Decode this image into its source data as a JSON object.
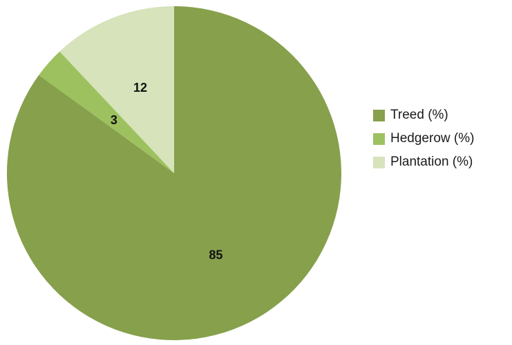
{
  "chart_data": {
    "type": "pie",
    "slices": [
      {
        "label": "Treed (%)",
        "value": 85,
        "color": "#86A04C"
      },
      {
        "label": "Hedgerow (%)",
        "value": 3,
        "color": "#9EC15F"
      },
      {
        "label": "Plantation (%)",
        "value": 12,
        "color": "#D6E3BB"
      }
    ],
    "start_angle_deg": 0,
    "direction": "clockwise",
    "legend_position": "right",
    "title": ""
  }
}
